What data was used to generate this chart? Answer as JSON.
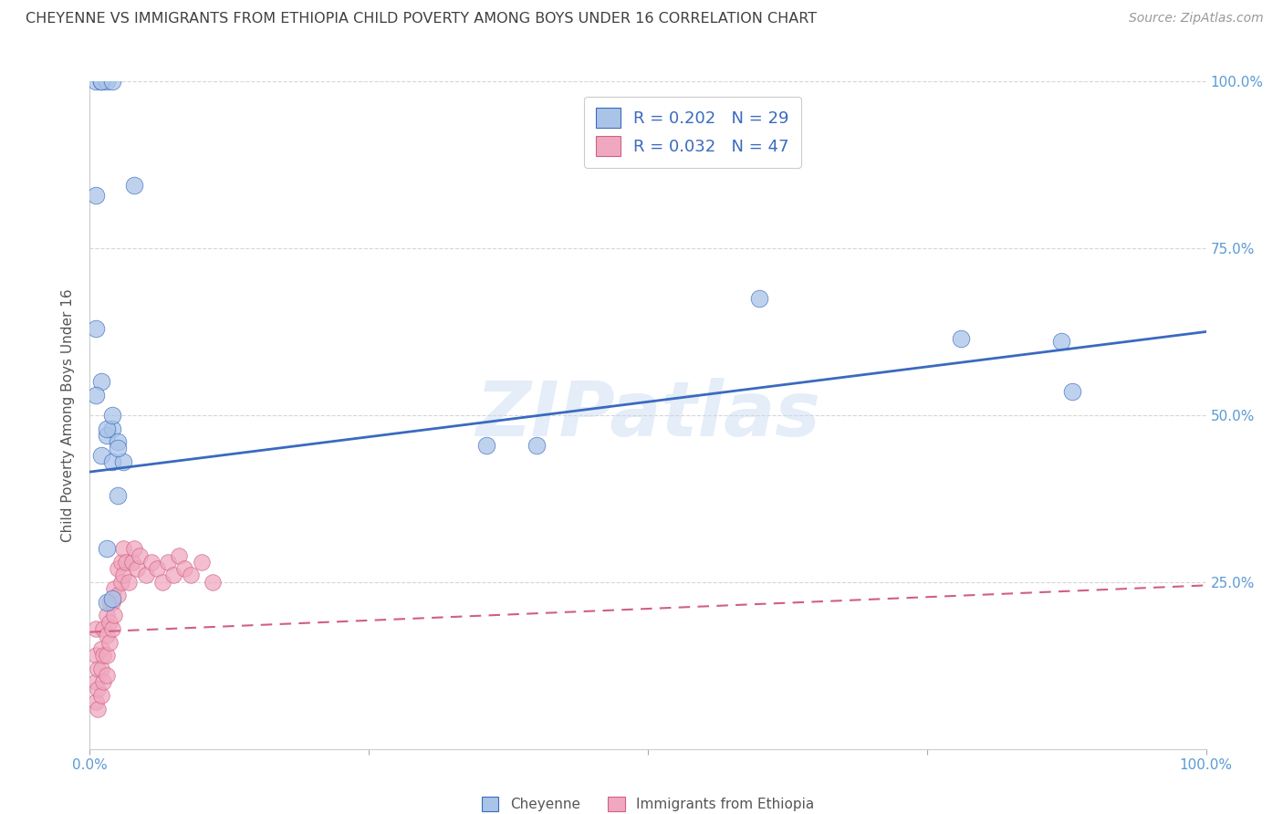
{
  "title": "CHEYENNE VS IMMIGRANTS FROM ETHIOPIA CHILD POVERTY AMONG BOYS UNDER 16 CORRELATION CHART",
  "source": "Source: ZipAtlas.com",
  "ylabel": "Child Poverty Among Boys Under 16",
  "xlim": [
    0,
    1.0
  ],
  "ylim": [
    0,
    1.0
  ],
  "watermark": "ZIPatlas",
  "legend_r1": "R = 0.202",
  "legend_n1": "N = 29",
  "legend_r2": "R = 0.032",
  "legend_n2": "N = 47",
  "cheyenne_color": "#aac4e8",
  "ethiopia_color": "#f0a8c0",
  "line_blue": "#3a6abf",
  "line_pink": "#d06080",
  "grid_color": "#cccccc",
  "axis_color": "#5b9bd5",
  "title_color": "#404040",
  "cheyenne_points_x": [
    0.01,
    0.015,
    0.02,
    0.025,
    0.005,
    0.01,
    0.015,
    0.02,
    0.03,
    0.005,
    0.005,
    0.01,
    0.015,
    0.005,
    0.01,
    0.02,
    0.04,
    0.015,
    0.02,
    0.025,
    0.355,
    0.4,
    0.6,
    0.78,
    0.87,
    0.88,
    0.015,
    0.02,
    0.025
  ],
  "cheyenne_points_y": [
    0.55,
    0.47,
    0.48,
    0.46,
    0.53,
    0.44,
    0.3,
    0.43,
    0.43,
    0.63,
    1.0,
    1.0,
    1.0,
    0.83,
    1.0,
    1.0,
    0.845,
    0.48,
    0.5,
    0.45,
    0.455,
    0.455,
    0.675,
    0.615,
    0.61,
    0.535,
    0.22,
    0.225,
    0.38
  ],
  "ethiopia_points_x": [
    0.005,
    0.005,
    0.005,
    0.005,
    0.007,
    0.007,
    0.007,
    0.01,
    0.01,
    0.01,
    0.012,
    0.012,
    0.012,
    0.015,
    0.015,
    0.015,
    0.015,
    0.018,
    0.018,
    0.018,
    0.02,
    0.02,
    0.022,
    0.022,
    0.025,
    0.025,
    0.028,
    0.028,
    0.03,
    0.03,
    0.032,
    0.035,
    0.038,
    0.04,
    0.042,
    0.045,
    0.05,
    0.055,
    0.06,
    0.065,
    0.07,
    0.075,
    0.08,
    0.085,
    0.09,
    0.1,
    0.11
  ],
  "ethiopia_points_y": [
    0.18,
    0.14,
    0.1,
    0.07,
    0.12,
    0.09,
    0.06,
    0.15,
    0.12,
    0.08,
    0.18,
    0.14,
    0.1,
    0.2,
    0.17,
    0.14,
    0.11,
    0.22,
    0.19,
    0.16,
    0.22,
    0.18,
    0.24,
    0.2,
    0.27,
    0.23,
    0.28,
    0.25,
    0.3,
    0.26,
    0.28,
    0.25,
    0.28,
    0.3,
    0.27,
    0.29,
    0.26,
    0.28,
    0.27,
    0.25,
    0.28,
    0.26,
    0.29,
    0.27,
    0.26,
    0.28,
    0.25
  ],
  "blue_line_x": [
    0.0,
    1.0
  ],
  "blue_line_y": [
    0.415,
    0.625
  ],
  "pink_line_x": [
    0.0,
    1.0
  ],
  "pink_line_y": [
    0.175,
    0.245
  ],
  "xticklabels_bottom": [
    "0.0%",
    "",
    "",
    "",
    "100.0%"
  ],
  "yticklabels_right": [
    "",
    "25.0%",
    "50.0%",
    "75.0%",
    "100.0%"
  ]
}
